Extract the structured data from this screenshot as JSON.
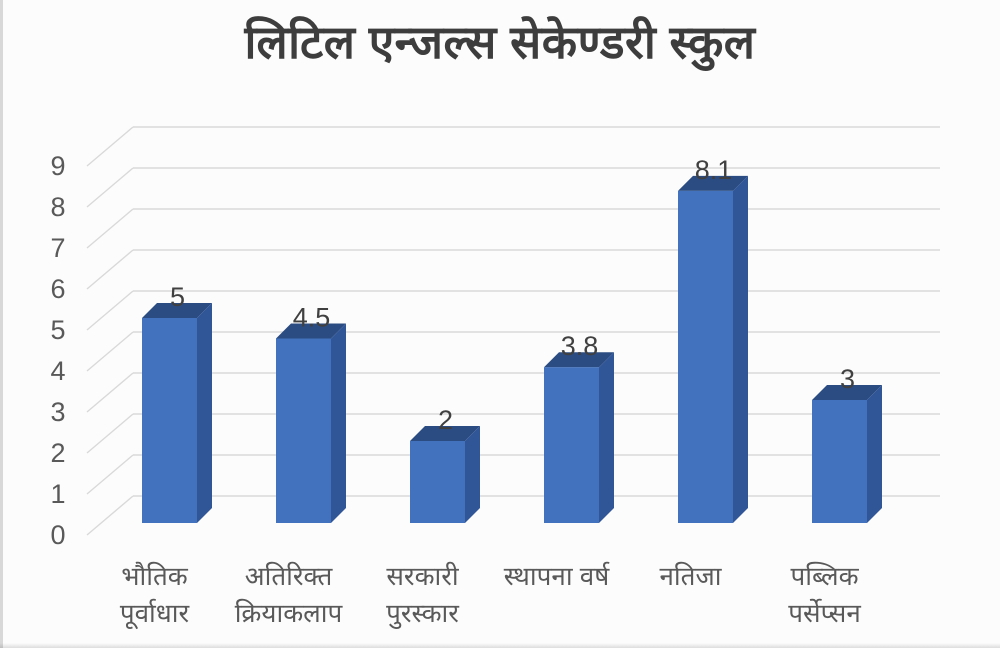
{
  "title": "लिटिल एन्जल्स सेकेण्डरी स्कुल",
  "chart_data": {
    "type": "bar",
    "style": "3d-column",
    "title": "लिटिल एन्जल्स सेकेण्डरी स्कुल",
    "categories": [
      "भौतिक पूर्वाधार",
      "अतिरिक्त क्रियाकलाप",
      "सरकारी पुरस्कार",
      "स्थापना वर्ष",
      "नतिजा",
      "पब्लिक पर्सेप्सन"
    ],
    "category_label_lines": [
      [
        "भौतिक",
        "पूर्वाधार"
      ],
      [
        "अतिरिक्त",
        "क्रियाकलाप"
      ],
      [
        "सरकारी",
        "पुरस्कार"
      ],
      [
        "स्थापना वर्ष"
      ],
      [
        "नतिजा"
      ],
      [
        "पब्लिक",
        "पर्सेप्सन"
      ]
    ],
    "values": [
      5,
      4.5,
      2,
      3.8,
      8.1,
      3
    ],
    "data_labels": [
      "5",
      "4.5",
      "2",
      "3.8",
      "8.1",
      "3"
    ],
    "xlabel": "",
    "ylabel": "",
    "y_ticks": [
      "0",
      "1",
      "2",
      "3",
      "4",
      "5",
      "6",
      "7",
      "8",
      "9"
    ],
    "ylim": [
      0,
      9
    ],
    "grid": true,
    "legend_position": "none",
    "colors": {
      "bar_front": "#4272BE",
      "bar_top": "#2B4C82",
      "bar_side": "#305698",
      "gridline": "#D9D9D9",
      "axis_text": "#595959",
      "data_label_text": "#404040",
      "title_text": "#3D3D3D",
      "background": "#FCFCFC"
    }
  }
}
